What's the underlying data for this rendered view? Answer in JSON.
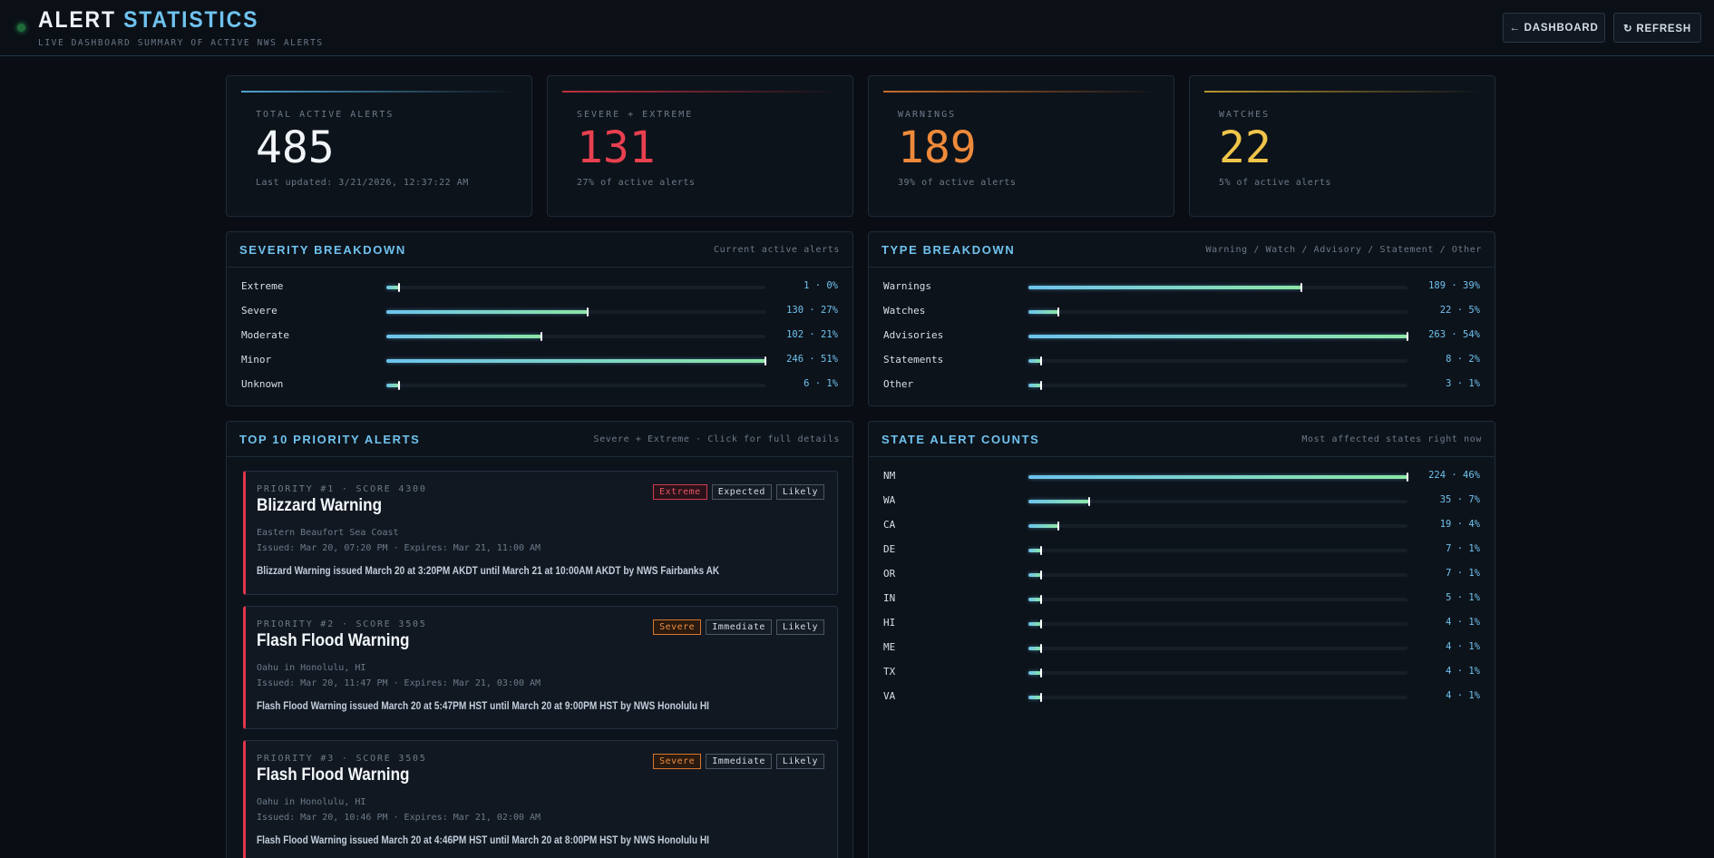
{
  "header": {
    "title_main": "ALERT",
    "title_accent": "STATISTICS",
    "subtitle": "LIVE DASHBOARD SUMMARY OF ACTIVE NWS ALERTS",
    "dashboard_label": "← DASHBOARD",
    "refresh_label": "↻ REFRESH"
  },
  "stats": [
    {
      "label": "TOTAL ACTIVE ALERTS",
      "value": "485",
      "foot": "Last updated: 3/21/2026, 12:37:22 AM",
      "color": "#f1f5f9",
      "line": "#4fa3cf"
    },
    {
      "label": "SEVERE + EXTREME",
      "value": "131",
      "foot": "27% of active alerts",
      "color": "#e8404f",
      "line": "#c0323f"
    },
    {
      "label": "WARNINGS",
      "value": "189",
      "foot": "39% of active alerts",
      "color": "#ef8a3a",
      "line": "#c86e2a"
    },
    {
      "label": "WATCHES",
      "value": "22",
      "foot": "5% of active alerts",
      "color": "#efc54a",
      "line": "#b8952e"
    }
  ],
  "severity": {
    "title": "SEVERITY BREAKDOWN",
    "note": "Current active alerts",
    "rows": [
      {
        "label": "Extreme",
        "value": "1 · 0%",
        "fraction": 0.0
      },
      {
        "label": "Severe",
        "value": "130 · 27%",
        "fraction": 0.53
      },
      {
        "label": "Moderate",
        "value": "102 · 21%",
        "fraction": 0.41
      },
      {
        "label": "Minor",
        "value": "246 · 51%",
        "fraction": 1.0
      },
      {
        "label": "Unknown",
        "value": "6 · 1%",
        "fraction": 0.02
      }
    ]
  },
  "types": {
    "title": "TYPE BREAKDOWN",
    "note": "Warning / Watch / Advisory / Statement / Other",
    "rows": [
      {
        "label": "Warnings",
        "value": "189 · 39%",
        "fraction": 0.72
      },
      {
        "label": "Watches",
        "value": "22 · 5%",
        "fraction": 0.08
      },
      {
        "label": "Advisories",
        "value": "263 · 54%",
        "fraction": 1.0
      },
      {
        "label": "Statements",
        "value": "8 · 2%",
        "fraction": 0.03
      },
      {
        "label": "Other",
        "value": "3 · 1%",
        "fraction": 0.01
      }
    ]
  },
  "priority": {
    "title": "TOP 10 PRIORITY ALERTS",
    "note": "Severe + Extreme · Click for full details",
    "alerts": [
      {
        "meta": "PRIORITY #1 · SCORE 4300",
        "title": "Blizzard Warning",
        "area": "Eastern Beaufort Sea Coast",
        "time": "Issued: Mar 20, 07:20 PM · Expires: Mar 21, 11:00 AM",
        "desc": "Blizzard Warning issued March 20 at 3:20PM AKDT until March 21 at 10:00AM AKDT by NWS Fairbanks AK",
        "badges": [
          "Extreme",
          "Expected",
          "Likely"
        ]
      },
      {
        "meta": "PRIORITY #2 · SCORE 3505",
        "title": "Flash Flood Warning",
        "area": "Oahu in Honolulu, HI",
        "time": "Issued: Mar 20, 11:47 PM · Expires: Mar 21, 03:00 AM",
        "desc": "Flash Flood Warning issued March 20 at 5:47PM HST until March 20 at 9:00PM HST by NWS Honolulu HI",
        "badges": [
          "Severe",
          "Immediate",
          "Likely"
        ]
      },
      {
        "meta": "PRIORITY #3 · SCORE 3505",
        "title": "Flash Flood Warning",
        "area": "Oahu in Honolulu, HI",
        "time": "Issued: Mar 20, 10:46 PM · Expires: Mar 21, 02:00 AM",
        "desc": "Flash Flood Warning issued March 20 at 4:46PM HST until March 20 at 8:00PM HST by NWS Honolulu HI",
        "badges": [
          "Severe",
          "Immediate",
          "Likely"
        ]
      }
    ]
  },
  "states": {
    "title": "STATE ALERT COUNTS",
    "note": "Most affected states right now",
    "rows": [
      {
        "label": "NM",
        "value": "224 · 46%",
        "fraction": 1.0
      },
      {
        "label": "WA",
        "value": "35 · 7%",
        "fraction": 0.16
      },
      {
        "label": "CA",
        "value": "19 · 4%",
        "fraction": 0.08
      },
      {
        "label": "DE",
        "value": "7 · 1%",
        "fraction": 0.03
      },
      {
        "label": "OR",
        "value": "7 · 1%",
        "fraction": 0.03
      },
      {
        "label": "IN",
        "value": "5 · 1%",
        "fraction": 0.02
      },
      {
        "label": "HI",
        "value": "4 · 1%",
        "fraction": 0.02
      },
      {
        "label": "ME",
        "value": "4 · 1%",
        "fraction": 0.02
      },
      {
        "label": "TX",
        "value": "4 · 1%",
        "fraction": 0.02
      },
      {
        "label": "VA",
        "value": "4 · 1%",
        "fraction": 0.02
      }
    ]
  }
}
